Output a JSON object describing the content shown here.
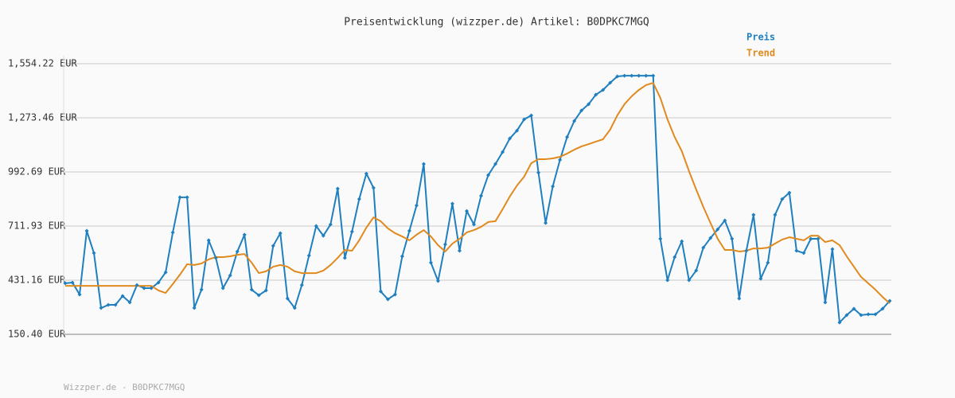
{
  "chart_data": {
    "type": "line",
    "title": "Preisentwicklung (wizzper.de) Artikel: B0DPKC7MGQ",
    "footer": "Wizzper.de - B0DPKC7MGQ",
    "grid": true,
    "legend": "top-right",
    "ylim": [
      150.4,
      1554.22
    ],
    "yticks": [
      {
        "value": 150.4,
        "label": "150.40 EUR"
      },
      {
        "value": 431.16,
        "label": "431.16 EUR"
      },
      {
        "value": 711.93,
        "label": "711.93 EUR"
      },
      {
        "value": 992.69,
        "label": "992.69 EUR"
      },
      {
        "value": 1273.46,
        "label": "1,273.46 EUR"
      },
      {
        "value": 1554.22,
        "label": "1,554.22 EUR"
      }
    ],
    "categories": [
      null,
      null,
      null,
      null,
      null,
      null,
      null,
      null,
      null,
      null,
      null,
      null,
      null,
      null,
      null,
      null,
      null,
      null,
      null,
      null,
      null,
      null,
      null,
      null,
      null,
      null,
      null,
      null,
      null,
      null,
      null,
      null,
      null,
      null,
      null,
      null,
      null,
      null,
      null,
      null,
      null,
      null,
      null,
      null,
      null,
      null,
      null,
      null,
      null,
      null,
      null,
      null,
      null,
      null,
      null,
      null,
      null,
      null,
      null,
      null,
      null,
      null,
      null,
      null,
      null,
      null,
      null,
      null,
      null,
      null,
      null,
      null,
      null,
      null,
      null,
      null,
      null,
      null,
      null,
      null,
      null,
      null,
      null,
      null,
      null,
      null,
      null,
      null,
      null,
      null,
      null,
      null,
      null,
      null,
      null,
      null,
      null,
      null,
      null,
      null,
      null,
      null,
      null,
      null,
      null,
      null,
      null,
      null,
      null,
      null,
      null,
      null,
      null,
      null,
      null,
      null
    ],
    "series": [
      {
        "name": "Preis",
        "color": "#1f7fbf",
        "markers": true,
        "values": [
          415,
          419,
          357,
          687,
          572,
          287,
          303,
          303,
          349,
          316,
          406,
          390,
          390,
          419,
          472,
          679,
          861,
          861,
          287,
          382,
          638,
          547,
          390,
          456,
          580,
          667,
          382,
          353,
          378,
          609,
          675,
          336,
          287,
          406,
          559,
          712,
          662,
          720,
          906,
          547,
          683,
          852,
          984,
          910,
          373,
          332,
          357,
          555,
          687,
          819,
          1034,
          522,
          427,
          617,
          828,
          584,
          790,
          720,
          869,
          976,
          1034,
          1096,
          1166,
          1207,
          1265,
          1286,
          989,
          728,
          918,
          1055,
          1174,
          1257,
          1311,
          1344,
          1393,
          1418,
          1455,
          1488,
          1492,
          1492,
          1492,
          1492,
          1492,
          646,
          431,
          551,
          633,
          431,
          481,
          600,
          650,
          695,
          741,
          646,
          336,
          584,
          770,
          439,
          522,
          770,
          852,
          885,
          584,
          572,
          646,
          646,
          316,
          592,
          212,
          250,
          283,
          250,
          254,
          254,
          283,
          324
        ]
      },
      {
        "name": "Trend",
        "color": "#e08a1e",
        "markers": false,
        "values": [
          402,
          402,
          402,
          402,
          402,
          402,
          402,
          402,
          402,
          402,
          402,
          402,
          402,
          378,
          365,
          411,
          460,
          514,
          510,
          518,
          539,
          551,
          551,
          555,
          563,
          567,
          522,
          468,
          477,
          501,
          510,
          501,
          477,
          468,
          468,
          468,
          481,
          510,
          547,
          588,
          584,
          638,
          704,
          757,
          737,
          700,
          675,
          658,
          638,
          667,
          691,
          658,
          613,
          580,
          621,
          646,
          679,
          691,
          708,
          733,
          737,
          799,
          865,
          922,
          968,
          1038,
          1059,
          1059,
          1063,
          1071,
          1088,
          1108,
          1125,
          1137,
          1150,
          1162,
          1212,
          1286,
          1344,
          1385,
          1418,
          1443,
          1455,
          1377,
          1265,
          1174,
          1100,
          997,
          902,
          811,
          728,
          646,
          588,
          588,
          580,
          584,
          596,
          596,
          600,
          621,
          642,
          654,
          646,
          638,
          662,
          662,
          629,
          638,
          613,
          555,
          501,
          448,
          415,
          382,
          344,
          311
        ]
      }
    ]
  }
}
